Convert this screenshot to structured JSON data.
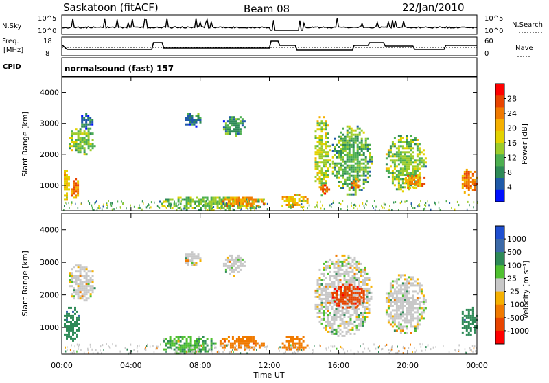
{
  "header": {
    "station": "Saskatoon (fitACF)",
    "beam": "Beam 08",
    "date": "22/Jan/2010"
  },
  "top_panels": {
    "nsky_label": "N.Sky",
    "nsky_ticks": [
      "10^5",
      "10^0"
    ],
    "freq_label_1": "Freq.",
    "freq_label_2": "[MHz]",
    "freq_ticks": [
      "18",
      "8"
    ],
    "cpid_label": "CPID",
    "cpid_text": "normalsound (fast) 157",
    "nsearch_label": "N.Search",
    "nsearch_ticks": [
      "10^5",
      "10^0"
    ],
    "nave_label": "Nave",
    "nave_ticks": [
      "60",
      "0"
    ]
  },
  "axes": {
    "xlabel": "Time UT",
    "ylabel": "Slant Range [km]",
    "x_ticks": [
      "00:00",
      "04:00",
      "08:00",
      "12:00",
      "16:00",
      "20:00",
      "00:00"
    ],
    "y_ticks": [
      "1000",
      "2000",
      "3000",
      "4000"
    ]
  },
  "power_colorbar": {
    "label": "Power [dB]",
    "ticks": [
      "28",
      "24",
      "20",
      "16",
      "12",
      "8",
      "4"
    ],
    "colors": [
      "#ff0000",
      "#e84400",
      "#f07a00",
      "#f5b000",
      "#e3d200",
      "#9ccc2a",
      "#4caf50",
      "#2e8a57",
      "#1f5aa8",
      "#0010ff"
    ]
  },
  "velocity_colorbar": {
    "label": "Velocity [m s⁻¹]",
    "ticks": [
      "1000",
      "500",
      "100",
      "25",
      "-25",
      "-100",
      "-500",
      "-1000"
    ],
    "colors": [
      "#1f4fd0",
      "#3c6aa8",
      "#2e8a57",
      "#4fc030",
      "#c8c8c8",
      "#f5b000",
      "#f07a00",
      "#e84400",
      "#ff0000"
    ]
  },
  "chart_data": [
    {
      "type": "heatmap",
      "name": "Power",
      "x_range_hours": [
        0,
        24
      ],
      "y_range_km": [
        180,
        4500
      ],
      "blobs": [
        {
          "t0": 0.0,
          "t1": 0.4,
          "r0": 500,
          "r1": 1700,
          "value": 20
        },
        {
          "t0": 0.4,
          "t1": 1.0,
          "r0": 600,
          "r1": 1300,
          "value": 24
        },
        {
          "t0": 0.3,
          "t1": 1.9,
          "r0": 2000,
          "r1": 2900,
          "value": 14
        },
        {
          "t0": 1.0,
          "t1": 1.8,
          "r0": 2800,
          "r1": 3400,
          "value": 8
        },
        {
          "t0": 5.5,
          "t1": 11.8,
          "r0": 200,
          "r1": 700,
          "value": 14
        },
        {
          "t0": 9.0,
          "t1": 11.7,
          "r0": 300,
          "r1": 700,
          "value": 22
        },
        {
          "t0": 7.0,
          "t1": 8.0,
          "r0": 2900,
          "r1": 3400,
          "value": 8
        },
        {
          "t0": 9.2,
          "t1": 10.6,
          "r0": 2600,
          "r1": 3300,
          "value": 10
        },
        {
          "t0": 12.6,
          "t1": 14.2,
          "r0": 300,
          "r1": 800,
          "value": 20
        },
        {
          "t0": 14.5,
          "t1": 15.5,
          "r0": 700,
          "r1": 3300,
          "value": 16
        },
        {
          "t0": 14.8,
          "t1": 15.4,
          "r0": 700,
          "r1": 1100,
          "value": 26
        },
        {
          "t0": 15.5,
          "t1": 17.9,
          "r0": 700,
          "r1": 3000,
          "value": 12
        },
        {
          "t0": 16.6,
          "t1": 17.2,
          "r0": 900,
          "r1": 1300,
          "value": 24
        },
        {
          "t0": 18.6,
          "t1": 21.0,
          "r0": 800,
          "r1": 2700,
          "value": 14
        },
        {
          "t0": 19.6,
          "t1": 21.0,
          "r0": 900,
          "r1": 1400,
          "value": 22
        },
        {
          "t0": 23.0,
          "t1": 24.0,
          "r0": 700,
          "r1": 1600,
          "value": 24
        }
      ]
    },
    {
      "type": "heatmap",
      "name": "Velocity",
      "x_range_hours": [
        0,
        24
      ],
      "y_range_km": [
        180,
        4500
      ],
      "blobs": [
        {
          "t0": 0.0,
          "t1": 1.0,
          "r0": 600,
          "r1": 1700,
          "value": 100
        },
        {
          "t0": 0.3,
          "t1": 1.9,
          "r0": 1800,
          "r1": 3000,
          "value": 0
        },
        {
          "t0": 5.5,
          "t1": 9.0,
          "r0": 200,
          "r1": 800,
          "value": 50
        },
        {
          "t0": 9.0,
          "t1": 11.7,
          "r0": 300,
          "r1": 800,
          "value": -100
        },
        {
          "t0": 7.0,
          "t1": 8.0,
          "r0": 2900,
          "r1": 3400,
          "value": 0
        },
        {
          "t0": 9.2,
          "t1": 10.6,
          "r0": 2600,
          "r1": 3300,
          "value": 0
        },
        {
          "t0": 12.6,
          "t1": 14.2,
          "r0": 300,
          "r1": 800,
          "value": -100
        },
        {
          "t0": 14.5,
          "t1": 17.9,
          "r0": 700,
          "r1": 3300,
          "value": 0
        },
        {
          "t0": 15.5,
          "t1": 17.5,
          "r0": 1600,
          "r1": 2400,
          "value": -500
        },
        {
          "t0": 18.6,
          "t1": 21.0,
          "r0": 800,
          "r1": 2700,
          "value": 0
        },
        {
          "t0": 23.0,
          "t1": 24.0,
          "r0": 700,
          "r1": 1700,
          "value": 100
        }
      ]
    }
  ]
}
